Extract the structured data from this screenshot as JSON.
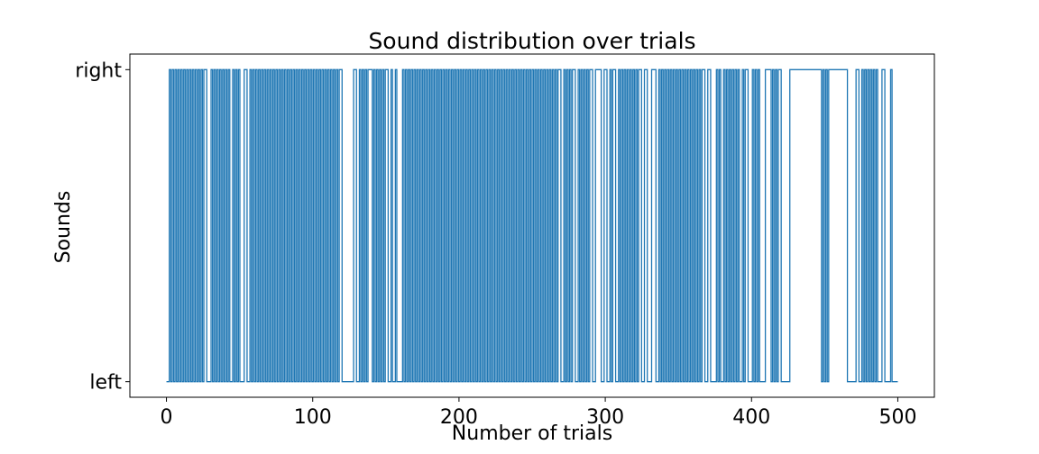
{
  "chart_data": {
    "type": "line",
    "title": "Sound distribution over trials",
    "xlabel": "Number of trials",
    "ylabel": "Sounds",
    "xlim": [
      -25,
      525
    ],
    "ylim": [
      -0.05,
      1.05
    ],
    "xticks": [
      0,
      100,
      200,
      300,
      400,
      500
    ],
    "xtick_labels": [
      "0",
      "100",
      "200",
      "300",
      "400",
      "500"
    ],
    "yticks": [
      0,
      1
    ],
    "ytick_labels": [
      "left",
      "right"
    ],
    "grid": false,
    "line_color": "#1f77b4",
    "step": true,
    "series": [
      {
        "name": "",
        "x_start": 0,
        "values": [
          0,
          0,
          1,
          0,
          1,
          0,
          1,
          0,
          1,
          0,
          1,
          0,
          1,
          0,
          1,
          0,
          1,
          0,
          1,
          0,
          1,
          0,
          1,
          0,
          1,
          0,
          1,
          1,
          0,
          0,
          0,
          1,
          0,
          1,
          0,
          1,
          0,
          1,
          0,
          1,
          0,
          1,
          0,
          1,
          0,
          0,
          1,
          0,
          1,
          0,
          1,
          0,
          0,
          0,
          1,
          1,
          0,
          0,
          1,
          0,
          1,
          0,
          1,
          0,
          1,
          0,
          1,
          0,
          1,
          0,
          1,
          0,
          1,
          0,
          1,
          0,
          1,
          0,
          1,
          0,
          1,
          0,
          1,
          0,
          1,
          0,
          1,
          0,
          1,
          0,
          1,
          0,
          1,
          0,
          1,
          0,
          1,
          0,
          1,
          0,
          1,
          0,
          1,
          0,
          1,
          0,
          1,
          0,
          1,
          0,
          1,
          0,
          1,
          0,
          1,
          0,
          1,
          0,
          1,
          0,
          1,
          1,
          0,
          0,
          0,
          0,
          0,
          0,
          0,
          0,
          1,
          1,
          0,
          0,
          1,
          0,
          1,
          0,
          1,
          0,
          1,
          1,
          1,
          0,
          1,
          0,
          1,
          0,
          1,
          0,
          1,
          0,
          1,
          1,
          0,
          0,
          1,
          0,
          0,
          1,
          0,
          0,
          0,
          0,
          1,
          0,
          1,
          0,
          1,
          0,
          1,
          0,
          1,
          0,
          1,
          0,
          1,
          0,
          1,
          0,
          1,
          0,
          1,
          0,
          1,
          0,
          1,
          0,
          1,
          0,
          1,
          0,
          1,
          0,
          1,
          0,
          1,
          0,
          1,
          0,
          1,
          0,
          1,
          0,
          1,
          0,
          1,
          0,
          1,
          0,
          1,
          0,
          1,
          0,
          1,
          0,
          1,
          0,
          1,
          0,
          1,
          0,
          1,
          0,
          1,
          0,
          1,
          0,
          1,
          0,
          1,
          0,
          1,
          0,
          1,
          0,
          1,
          0,
          1,
          0,
          1,
          0,
          1,
          0,
          1,
          0,
          1,
          0,
          1,
          0,
          1,
          0,
          1,
          0,
          1,
          0,
          1,
          0,
          1,
          0,
          1,
          0,
          1,
          0,
          1,
          0,
          1,
          0,
          1,
          0,
          1,
          0,
          1,
          1,
          0,
          0,
          1,
          0,
          1,
          0,
          1,
          0,
          1,
          1,
          0,
          0,
          1,
          0,
          1,
          0,
          1,
          0,
          1,
          0,
          1,
          1,
          0,
          0,
          1,
          1,
          1,
          1,
          0,
          0,
          1,
          1,
          0,
          0,
          1,
          0,
          1,
          1,
          0,
          0,
          1,
          0,
          1,
          0,
          1,
          0,
          1,
          0,
          1,
          0,
          1,
          0,
          1,
          0,
          1,
          1,
          0,
          0,
          1,
          1,
          0,
          0,
          0,
          1,
          1,
          1,
          0,
          0,
          1,
          0,
          1,
          0,
          1,
          0,
          1,
          0,
          1,
          0,
          1,
          0,
          1,
          0,
          1,
          0,
          1,
          0,
          1,
          0,
          1,
          0,
          1,
          0,
          1,
          0,
          1,
          0,
          1,
          0,
          1,
          1,
          0,
          0,
          1,
          1,
          0,
          0,
          0,
          0,
          1,
          0,
          1,
          0,
          0,
          1,
          0,
          1,
          0,
          1,
          0,
          1,
          0,
          1,
          0,
          1,
          0,
          0,
          1,
          0,
          1,
          1,
          0,
          0,
          0,
          1,
          0,
          1,
          0,
          1,
          0,
          0,
          0,
          0,
          1,
          1,
          1,
          1,
          0,
          1,
          0,
          1,
          0,
          1,
          1,
          0,
          0,
          0,
          0,
          0,
          0,
          1,
          1,
          1,
          1,
          1,
          1,
          1,
          1,
          1,
          1,
          1,
          1,
          1,
          1,
          1,
          1,
          1,
          1,
          1,
          1,
          1,
          1,
          0,
          1,
          0,
          1,
          0,
          1,
          1,
          1,
          1,
          1,
          1,
          1,
          1,
          1,
          1,
          1,
          1,
          1,
          0,
          0,
          0,
          0,
          0,
          0,
          1,
          1,
          0,
          0,
          1,
          0,
          1,
          0,
          1,
          0,
          1,
          0,
          1,
          0,
          1,
          0,
          0,
          0,
          1,
          1,
          0,
          0,
          0,
          0,
          1,
          0,
          0,
          0,
          0,
          0
        ]
      }
    ]
  }
}
